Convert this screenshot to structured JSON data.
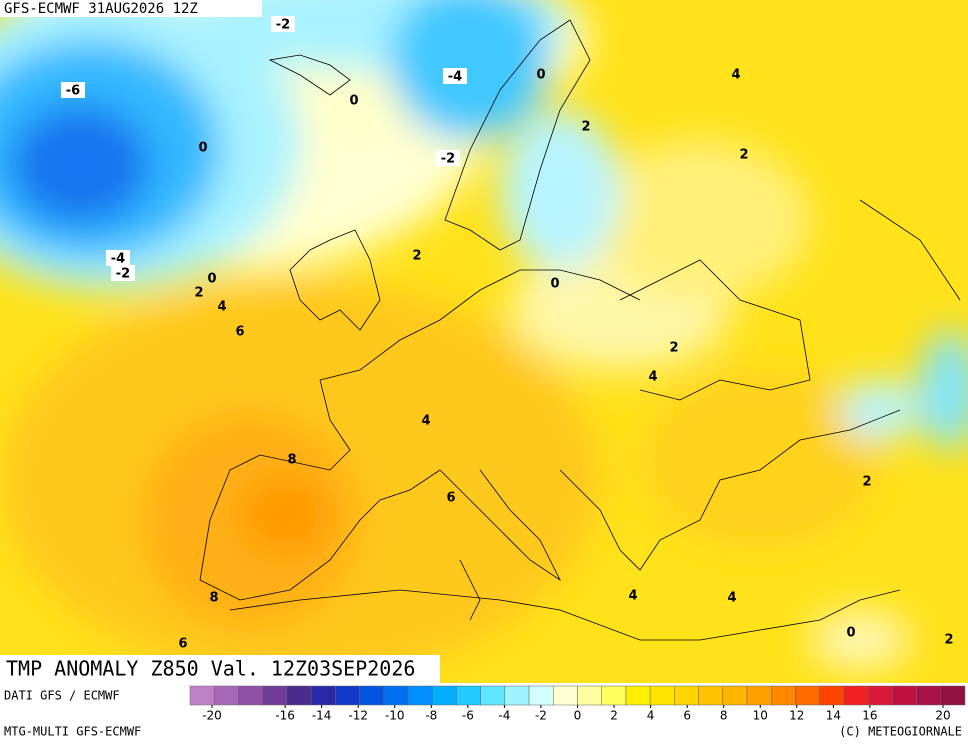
{
  "header": {
    "title": "GFS-ECMWF 31AUG2026 12Z"
  },
  "map": {
    "title": "TMP ANOMALY Z850 Val. 12Z03SEP2026",
    "contour_labels": [
      -2,
      -4,
      0,
      4,
      -6,
      0,
      2,
      0,
      2,
      -2,
      2,
      -4,
      -2,
      0,
      0,
      2,
      4,
      6,
      2,
      4,
      4,
      8,
      2,
      6,
      8,
      4,
      4,
      0,
      6,
      2
    ]
  },
  "footer": {
    "source": "DATI GFS / ECMWF",
    "model": "MTG-MULTI GFS-ECMWF",
    "copyright": "(C) METEOGIORNALE"
  },
  "scale": {
    "range": [
      -20,
      20
    ],
    "ticks": [
      -20,
      -16,
      -14,
      -12,
      -10,
      -8,
      -6,
      -4,
      -2,
      0,
      2,
      4,
      6,
      8,
      10,
      12,
      14,
      16,
      20
    ],
    "colors": [
      "#c080c8",
      "#a868b8",
      "#9050a8",
      "#703c98",
      "#4a2c8c",
      "#2828a8",
      "#1438c8",
      "#0054e0",
      "#0070f0",
      "#0090ff",
      "#00b0ff",
      "#20ccff",
      "#60e4ff",
      "#a0f2ff",
      "#d4ffff",
      "#ffffd0",
      "#ffffa0",
      "#ffff60",
      "#fff000",
      "#ffe400",
      "#ffd400",
      "#ffc400",
      "#ffb400",
      "#ffa000",
      "#ff8800",
      "#ff6a00",
      "#ff4400",
      "#f02020",
      "#d81838",
      "#c01040",
      "#a81048",
      "#901040"
    ]
  }
}
